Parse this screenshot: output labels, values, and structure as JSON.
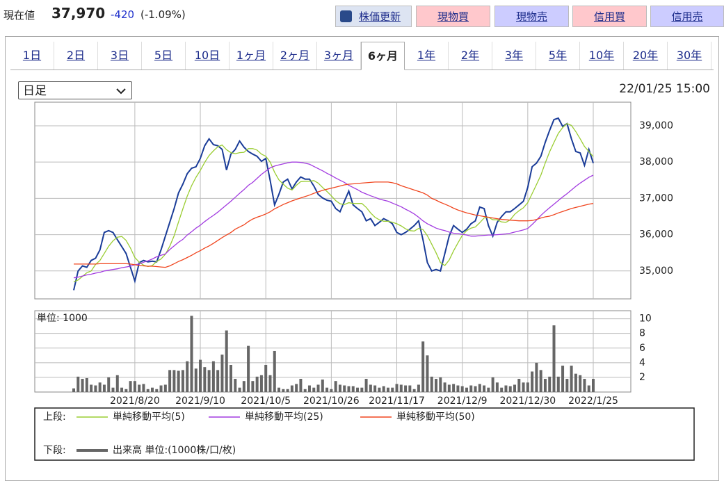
{
  "header": {
    "label": "現在値",
    "price": "37,970",
    "change": "-420",
    "change_pct": "(-1.09%)",
    "buttons": [
      "株価更新",
      "現物買",
      "現物売",
      "信用買",
      "信用売"
    ]
  },
  "tabs": {
    "items": [
      "1日",
      "2日",
      "3日",
      "5日",
      "10日",
      "1ヶ月",
      "2ヶ月",
      "3ヶ月",
      "6ヶ月",
      "1年",
      "2年",
      "3年",
      "5年",
      "10年",
      "20年",
      "30年"
    ],
    "active": 8
  },
  "interval_select": "日足",
  "timestamp": "22/01/25 15:00",
  "chart_data": [
    {
      "type": "line",
      "legend_label": "上段:",
      "ylim": [
        34230,
        39650
      ],
      "yticks": [
        {
          "value": 35000,
          "label": "35,000"
        },
        {
          "value": 36000,
          "label": "36,000"
        },
        {
          "value": 37000,
          "label": "37,000"
        },
        {
          "value": 38000,
          "label": "38,000"
        },
        {
          "value": 39000,
          "label": "39,000"
        }
      ],
      "grid": true,
      "series": [
        {
          "color": "#1a3c98",
          "values": [
            34470,
            35000,
            35140,
            35100,
            35290,
            35350,
            35580,
            36060,
            36110,
            36060,
            35860,
            35670,
            35480,
            35100,
            34720,
            35230,
            35290,
            35250,
            35270,
            35250,
            35580,
            35960,
            36340,
            36720,
            37150,
            37390,
            37680,
            37830,
            37870,
            38100,
            38450,
            38640,
            38480,
            38450,
            38350,
            37780,
            38220,
            38350,
            38580,
            38410,
            38290,
            38220,
            38160,
            38020,
            38100,
            37490,
            36820,
            37110,
            37450,
            37530,
            37260,
            37450,
            37590,
            37530,
            37530,
            37340,
            37110,
            37010,
            36950,
            36920,
            36720,
            36630,
            36920,
            37200,
            36820,
            36720,
            36630,
            36380,
            36440,
            36250,
            36340,
            36440,
            36380,
            36300,
            36060,
            36000,
            36060,
            36150,
            36250,
            36380,
            35860,
            35230,
            35000,
            35040,
            35000,
            35480,
            35960,
            36250,
            36150,
            36060,
            36150,
            36300,
            36380,
            36760,
            36720,
            36250,
            35960,
            36340,
            36500,
            36630,
            36630,
            36720,
            36820,
            36920,
            37300,
            37870,
            37970,
            38160,
            38540,
            38870,
            39170,
            39210,
            38980,
            39060,
            38640,
            38290,
            38250,
            37910,
            38350,
            37970
          ]
        },
        {
          "name": "単純移動平均(5)",
          "color": "#9acd32",
          "values": [
            34700,
            34750,
            34850,
            34950,
            35000,
            35180,
            35290,
            35480,
            35680,
            35830,
            35930,
            35950,
            35840,
            35630,
            35370,
            35240,
            35160,
            35120,
            35150,
            35260,
            35330,
            35460,
            35680,
            35970,
            36350,
            36710,
            37060,
            37350,
            37580,
            37770,
            37990,
            38180,
            38310,
            38420,
            38470,
            38340,
            38260,
            38230,
            38260,
            38270,
            38370,
            38370,
            38330,
            38220,
            38160,
            38000,
            37720,
            37510,
            37390,
            37280,
            37230,
            37360,
            37460,
            37470,
            37470,
            37490,
            37420,
            37300,
            37190,
            37070,
            36940,
            36850,
            36830,
            36880,
            36860,
            36860,
            36860,
            36750,
            36600,
            36480,
            36410,
            36370,
            36370,
            36340,
            36300,
            36240,
            36160,
            36110,
            36100,
            36170,
            36140,
            35970,
            35740,
            35500,
            35230,
            35150,
            35300,
            35550,
            35770,
            35980,
            36110,
            36180,
            36210,
            36330,
            36460,
            36480,
            36410,
            36410,
            36350,
            36340,
            36410,
            36560,
            36660,
            36740,
            36880,
            37130,
            37380,
            37640,
            37970,
            38280,
            38540,
            38790,
            38950,
            39060,
            39010,
            38840,
            38640,
            38430,
            38290,
            38150
          ]
        },
        {
          "name": "単純移動平均(25)",
          "color": "#a23be0",
          "values": [
            34810,
            34830,
            34860,
            34890,
            34910,
            34940,
            34960,
            35000,
            35020,
            35040,
            35060,
            35090,
            35110,
            35130,
            35170,
            35190,
            35240,
            35280,
            35330,
            35390,
            35430,
            35470,
            35590,
            35690,
            35790,
            35870,
            35990,
            36080,
            36180,
            36260,
            36360,
            36450,
            36530,
            36620,
            36720,
            36820,
            36920,
            37030,
            37140,
            37240,
            37360,
            37440,
            37550,
            37660,
            37750,
            37840,
            37890,
            37920,
            37950,
            37980,
            38000,
            38000,
            37990,
            37970,
            37940,
            37880,
            37820,
            37760,
            37690,
            37630,
            37560,
            37500,
            37440,
            37360,
            37300,
            37240,
            37170,
            37120,
            37070,
            37030,
            36980,
            36950,
            36920,
            36870,
            36820,
            36770,
            36700,
            36640,
            36570,
            36480,
            36380,
            36300,
            36240,
            36180,
            36140,
            36110,
            36070,
            36040,
            36030,
            36010,
            35990,
            35960,
            35960,
            35970,
            35980,
            35990,
            35990,
            36000,
            36010,
            36020,
            36040,
            36070,
            36100,
            36130,
            36170,
            36280,
            36400,
            36530,
            36640,
            36740,
            36840,
            36940,
            37040,
            37130,
            37230,
            37330,
            37420,
            37500,
            37580,
            37640
          ]
        },
        {
          "name": "単純移動平均(50)",
          "color": "#f0451e",
          "values": [
            35190,
            35190,
            35190,
            35190,
            35190,
            35190,
            35200,
            35200,
            35200,
            35200,
            35200,
            35200,
            35200,
            35190,
            35170,
            35150,
            35140,
            35130,
            35130,
            35120,
            35110,
            35100,
            35140,
            35200,
            35260,
            35310,
            35370,
            35430,
            35500,
            35560,
            35630,
            35690,
            35760,
            35840,
            35920,
            35990,
            36060,
            36150,
            36210,
            36270,
            36360,
            36430,
            36480,
            36520,
            36570,
            36630,
            36710,
            36770,
            36830,
            36880,
            36930,
            36970,
            37010,
            37050,
            37090,
            37140,
            37180,
            37220,
            37250,
            37280,
            37310,
            37340,
            37370,
            37390,
            37400,
            37410,
            37420,
            37430,
            37440,
            37450,
            37450,
            37450,
            37450,
            37430,
            37400,
            37350,
            37310,
            37270,
            37230,
            37190,
            37150,
            37090,
            37000,
            36950,
            36890,
            36840,
            36790,
            36730,
            36680,
            36640,
            36600,
            36570,
            36540,
            36520,
            36500,
            36480,
            36460,
            36440,
            36420,
            36410,
            36400,
            36390,
            36380,
            36380,
            36380,
            36390,
            36420,
            36460,
            36490,
            36510,
            36550,
            36600,
            36640,
            36680,
            36720,
            36750,
            36780,
            36810,
            36840,
            36860
          ]
        }
      ]
    },
    {
      "type": "bar",
      "legend_label": "下段:",
      "unit_label": "単位: 1000",
      "ylim": [
        0,
        11.1
      ],
      "yticks": [
        2,
        4,
        6,
        8,
        10
      ],
      "grid": true,
      "categories": [
        null,
        null,
        null,
        null,
        null,
        null,
        null,
        null,
        null,
        null,
        null,
        null,
        null,
        null,
        "2021/8/20",
        null,
        null,
        null,
        null,
        null,
        null,
        null,
        null,
        null,
        null,
        null,
        null,
        null,
        null,
        "2021/9/10",
        null,
        null,
        null,
        null,
        null,
        null,
        null,
        null,
        null,
        null,
        null,
        null,
        null,
        null,
        "2021/10/5",
        null,
        null,
        null,
        null,
        null,
        null,
        null,
        null,
        null,
        null,
        null,
        null,
        null,
        null,
        "2021/10/26",
        null,
        null,
        null,
        null,
        null,
        null,
        null,
        null,
        null,
        null,
        null,
        null,
        null,
        null,
        "2021/11/17",
        null,
        null,
        null,
        null,
        null,
        null,
        null,
        null,
        null,
        null,
        null,
        null,
        null,
        null,
        "2021/12/9",
        null,
        null,
        null,
        null,
        null,
        null,
        null,
        null,
        null,
        null,
        null,
        null,
        null,
        null,
        "2021/12/30",
        null,
        null,
        null,
        null,
        null,
        null,
        null,
        null,
        null,
        null,
        null,
        null,
        null,
        null,
        "2022/1/25"
      ],
      "series": [
        {
          "name": "出来高 単位:(1000株/口/枚)",
          "color": "#666666",
          "values": [
            0.5,
            2.1,
            1.8,
            1.9,
            1.0,
            0.9,
            1.3,
            1.0,
            2.0,
            0.6,
            2.3,
            0.6,
            0.4,
            1.5,
            1.5,
            1.0,
            1.1,
            0.4,
            0.6,
            0.4,
            0.9,
            1.0,
            3.0,
            3.0,
            2.9,
            3.0,
            4.2,
            10.4,
            3.2,
            4.4,
            3.4,
            3.0,
            4.2,
            3.0,
            5.1,
            8.4,
            3.7,
            1.8,
            0.6,
            1.5,
            6.3,
            1.5,
            2.1,
            2.3,
            3.7,
            2.3,
            5.6,
            0.6,
            0.4,
            0.4,
            0.9,
            1.1,
            1.8,
            0.4,
            0.9,
            0.6,
            1.0,
            1.7,
            0.6,
            0.4,
            1.5,
            1.0,
            0.9,
            0.8,
            0.8,
            0.6,
            0.6,
            1.8,
            1.0,
            0.9,
            0.6,
            0.8,
            0.6,
            0.6,
            1.1,
            1.0,
            0.9,
            0.9,
            0.4,
            1.0,
            6.9,
            5.0,
            2.1,
            1.8,
            2.0,
            1.3,
            1.0,
            1.1,
            0.9,
            0.8,
            0.6,
            0.9,
            0.8,
            1.1,
            0.9,
            0.6,
            2.0,
            1.3,
            0.6,
            0.9,
            0.8,
            1.0,
            1.8,
            1.3,
            1.3,
            2.8,
            4.0,
            3.0,
            1.8,
            2.1,
            9.1,
            2.1,
            3.6,
            1.8,
            3.6,
            2.5,
            2.3,
            1.8,
            0.9,
            1.8
          ]
        }
      ]
    }
  ]
}
